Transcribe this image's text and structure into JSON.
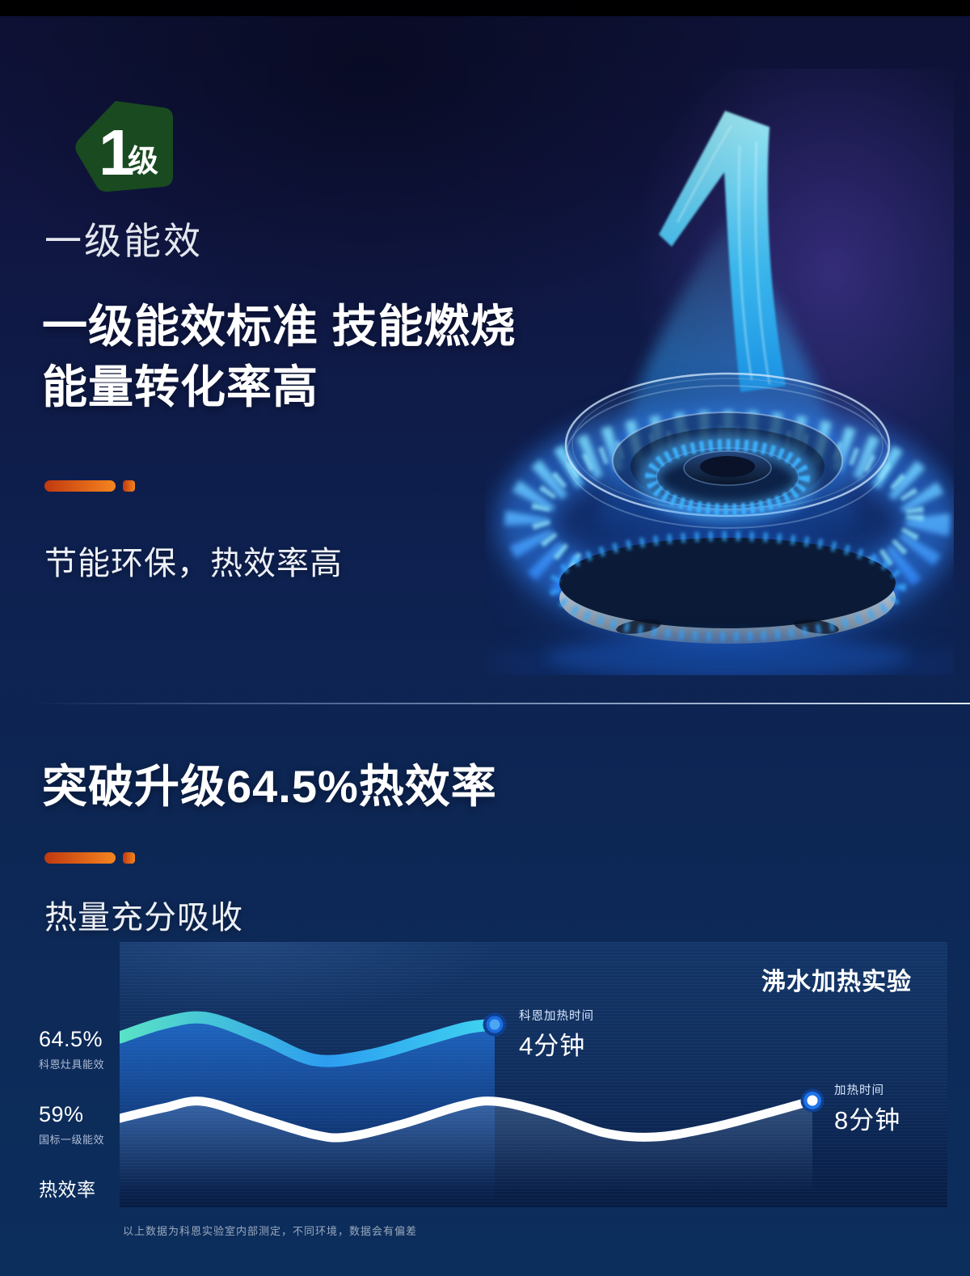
{
  "hero": {
    "badge_number": "1",
    "badge_unit": "级",
    "badge_caption": "一级能效",
    "title_line1": "一级能效标准 技能燃烧",
    "title_line2": "能量转化率高",
    "subtitle": "节能环保，热效率高"
  },
  "section2": {
    "title": "突破升级64.5%热效率",
    "subtitle": "热量充分吸收"
  },
  "colors": {
    "accent_orange_start": "#c0390f",
    "accent_orange_end": "#f5851f",
    "badge_green": "#1a4a20",
    "panel_navy": "#102e5d",
    "flame_cyan": "#49d6f0",
    "flame_blue": "#1e7ef0",
    "series1_stops": [
      "#58e3c4",
      "#2b9cf0",
      "#3ed4f0"
    ],
    "series2_color": "#ffffff"
  },
  "chart_data": {
    "type": "line",
    "title": "沸水加热实验",
    "ylabel": "热效率",
    "grid": "horizontal-scanlines",
    "legend_position": "inline-annotations",
    "y_axis_rows": [
      {
        "value": "64.5%",
        "caption": "科恩灶具能效"
      },
      {
        "value": "59%",
        "caption": "国标一级能效"
      },
      {
        "value": "热效率",
        "caption": ""
      }
    ],
    "series": [
      {
        "name": "科恩加热时间",
        "annotation_title": "科恩加热时间",
        "annotation_value": "4分钟",
        "minutes": 4,
        "efficiency_pct": 64.5,
        "wave_points": [
          [
            0,
            118
          ],
          [
            55,
            100
          ],
          [
            107,
            94
          ],
          [
            175,
            118
          ],
          [
            242,
            146
          ],
          [
            310,
            140
          ],
          [
            380,
            120
          ],
          [
            430,
            106
          ],
          [
            464,
            102
          ]
        ]
      },
      {
        "name": "加热时间",
        "annotation_title": "加热时间",
        "annotation_value": "8分钟",
        "minutes": 8,
        "efficiency_pct": 59,
        "wave_points": [
          [
            0,
            218
          ],
          [
            55,
            205
          ],
          [
            102,
            197
          ],
          [
            170,
            217
          ],
          [
            240,
            238
          ],
          [
            282,
            241
          ],
          [
            350,
            225
          ],
          [
            420,
            203
          ],
          [
            464,
            197
          ],
          [
            530,
            212
          ],
          [
            600,
            236
          ],
          [
            662,
            241
          ],
          [
            730,
            230
          ],
          [
            800,
            212
          ],
          [
            857,
            196
          ]
        ]
      }
    ],
    "footnote": "以上数据为科恩实验室内部测定，不同环境，数据会有偏差"
  }
}
